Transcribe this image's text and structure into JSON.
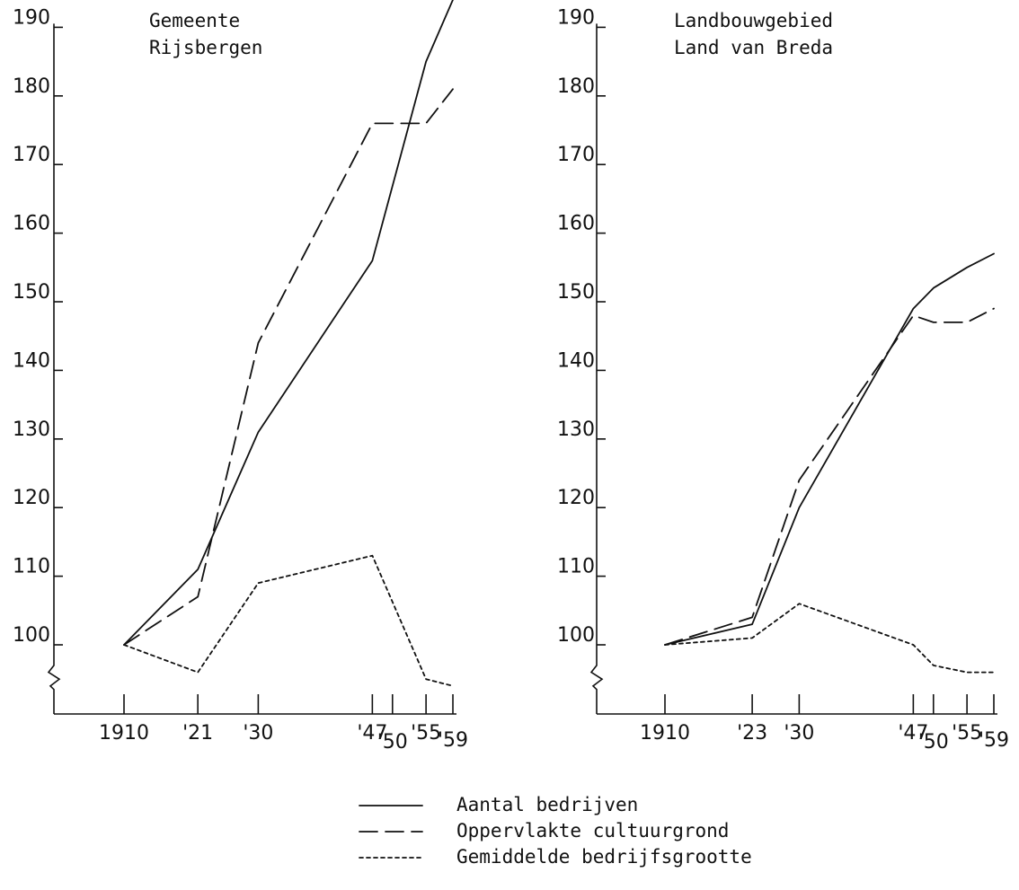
{
  "chart_data": [
    {
      "type": "line",
      "title": "Gemeente\nRijsbergen",
      "xlabel": "",
      "ylabel": "",
      "ylim": [
        95,
        190
      ],
      "y_ticks": [
        100,
        110,
        120,
        130,
        140,
        150,
        160,
        170,
        180,
        190
      ],
      "x_years": [
        1910,
        1921,
        1930,
        1947,
        1950,
        1955,
        1959
      ],
      "x_tick_labels": [
        "1910",
        "'21",
        "'30",
        "'47",
        "'50",
        "'55",
        "'59"
      ],
      "series": [
        {
          "name": "Aantal bedrijven",
          "style": "solid",
          "x": [
            1910,
            1921,
            1930,
            1947,
            1955,
            1959
          ],
          "y": [
            100,
            111,
            131,
            156,
            185,
            194
          ]
        },
        {
          "name": "Oppervlakte cultuurgrond",
          "style": "dashed",
          "x": [
            1910,
            1921,
            1930,
            1947,
            1955,
            1959
          ],
          "y": [
            100,
            107,
            144,
            176,
            176,
            181
          ]
        },
        {
          "name": "Gemiddelde bedrijfsgrootte",
          "style": "dotted",
          "x": [
            1910,
            1921,
            1930,
            1947,
            1955,
            1959
          ],
          "y": [
            100,
            96,
            109,
            113,
            95,
            94
          ]
        }
      ]
    },
    {
      "type": "line",
      "title": "Landbouwgebied\nLand van Breda",
      "xlabel": "",
      "ylabel": "",
      "ylim": [
        95,
        190
      ],
      "y_ticks": [
        100,
        110,
        120,
        130,
        140,
        150,
        160,
        170,
        180,
        190
      ],
      "x_years": [
        1910,
        1923,
        1930,
        1947,
        1950,
        1955,
        1959
      ],
      "x_tick_labels": [
        "1910",
        "'23",
        "'30",
        "'47",
        "'50",
        "'55",
        "'59"
      ],
      "series": [
        {
          "name": "Aantal bedrijven",
          "style": "solid",
          "x": [
            1910,
            1923,
            1930,
            1947,
            1950,
            1955,
            1959
          ],
          "y": [
            100,
            103,
            120,
            149,
            152,
            155,
            157
          ]
        },
        {
          "name": "Oppervlakte cultuurgrond",
          "style": "dashed",
          "x": [
            1910,
            1923,
            1930,
            1947,
            1950,
            1955,
            1959
          ],
          "y": [
            100,
            104,
            124,
            148,
            147,
            147,
            149
          ]
        },
        {
          "name": "Gemiddelde bedrijfsgrootte",
          "style": "dotted",
          "x": [
            1910,
            1923,
            1930,
            1947,
            1950,
            1955,
            1959
          ],
          "y": [
            100,
            101,
            106,
            100,
            97,
            96,
            96
          ]
        }
      ]
    }
  ],
  "legend": [
    {
      "label": "Aantal bedrijven",
      "style": "solid"
    },
    {
      "label": "Oppervlakte cultuurgrond",
      "style": "dashed"
    },
    {
      "label": "Gemiddelde bedrijfsgrootte",
      "style": "dotted"
    }
  ]
}
